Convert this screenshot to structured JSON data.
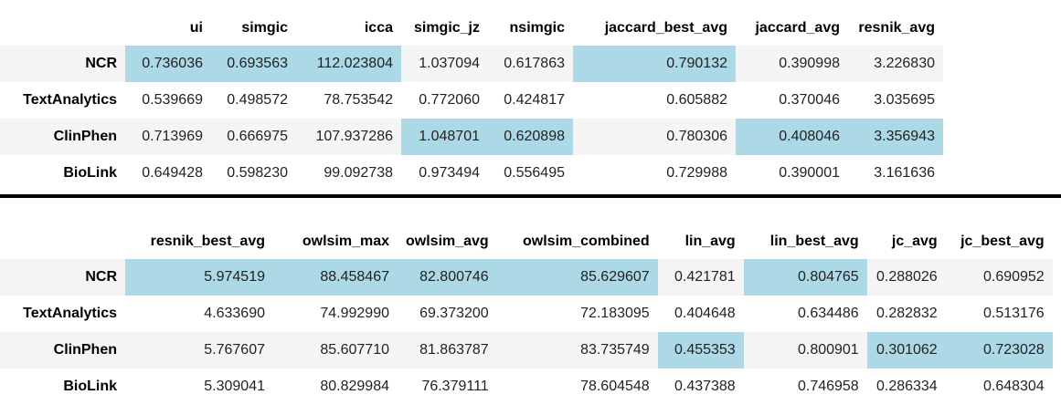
{
  "highlight_color": "#add8e6",
  "table_top": {
    "columns": [
      "ui",
      "simgic",
      "icca",
      "simgic_jz",
      "nsimgic",
      "jaccard_best_avg",
      "jaccard_avg",
      "resnik_avg"
    ],
    "rows": [
      {
        "label": "NCR",
        "values": [
          "0.736036",
          "0.693563",
          "112.023804",
          "1.037094",
          "0.617863",
          "0.790132",
          "0.390998",
          "3.226830"
        ],
        "highlight": [
          true,
          true,
          true,
          false,
          false,
          true,
          false,
          false
        ]
      },
      {
        "label": "TextAnalytics",
        "values": [
          "0.539669",
          "0.498572",
          "78.753542",
          "0.772060",
          "0.424817",
          "0.605882",
          "0.370046",
          "3.035695"
        ],
        "highlight": [
          false,
          false,
          false,
          false,
          false,
          false,
          false,
          false
        ]
      },
      {
        "label": "ClinPhen",
        "values": [
          "0.713969",
          "0.666975",
          "107.937286",
          "1.048701",
          "0.620898",
          "0.780306",
          "0.408046",
          "3.356943"
        ],
        "highlight": [
          false,
          false,
          false,
          true,
          true,
          false,
          true,
          true
        ]
      },
      {
        "label": "BioLink",
        "values": [
          "0.649428",
          "0.598230",
          "99.092738",
          "0.973494",
          "0.556495",
          "0.729988",
          "0.390001",
          "3.161636"
        ],
        "highlight": [
          false,
          false,
          false,
          false,
          false,
          false,
          false,
          false
        ]
      }
    ]
  },
  "table_bottom": {
    "columns": [
      "resnik_best_avg",
      "owlsim_max",
      "owlsim_avg",
      "owlsim_combined",
      "lin_avg",
      "lin_best_avg",
      "jc_avg",
      "jc_best_avg"
    ],
    "rows": [
      {
        "label": "NCR",
        "values": [
          "5.974519",
          "88.458467",
          "82.800746",
          "85.629607",
          "0.421781",
          "0.804765",
          "0.288026",
          "0.690952"
        ],
        "highlight": [
          true,
          true,
          true,
          true,
          false,
          true,
          false,
          false
        ]
      },
      {
        "label": "TextAnalytics",
        "values": [
          "4.633690",
          "74.992990",
          "69.373200",
          "72.183095",
          "0.404648",
          "0.634486",
          "0.282832",
          "0.513176"
        ],
        "highlight": [
          false,
          false,
          false,
          false,
          false,
          false,
          false,
          false
        ]
      },
      {
        "label": "ClinPhen",
        "values": [
          "5.767607",
          "85.607710",
          "81.863787",
          "83.735749",
          "0.455353",
          "0.800901",
          "0.301062",
          "0.723028"
        ],
        "highlight": [
          false,
          false,
          false,
          false,
          true,
          false,
          true,
          true
        ]
      },
      {
        "label": "BioLink",
        "values": [
          "5.309041",
          "80.829984",
          "76.379111",
          "78.604548",
          "0.437388",
          "0.746958",
          "0.286334",
          "0.648304"
        ],
        "highlight": [
          false,
          false,
          false,
          false,
          false,
          false,
          false,
          false
        ]
      }
    ]
  }
}
